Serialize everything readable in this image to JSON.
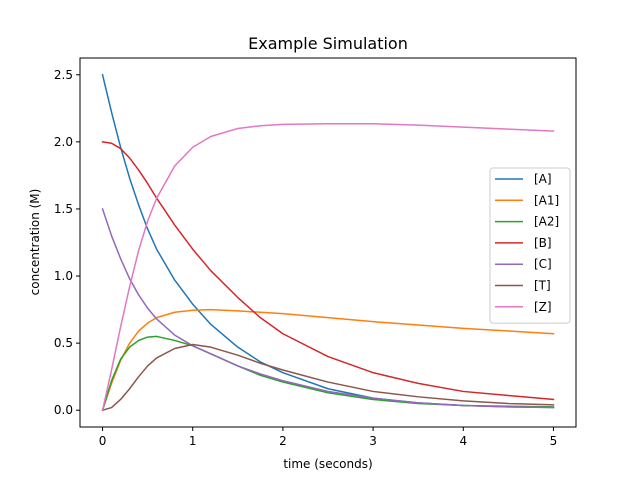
{
  "chart_data": {
    "type": "line",
    "title": "Example Simulation",
    "xlabel": "time (seconds)",
    "ylabel": "concentration (M)",
    "xlim": [
      -0.25,
      5.25
    ],
    "ylim": [
      -0.125,
      2.625
    ],
    "xticks": [
      0,
      1,
      2,
      3,
      4,
      5
    ],
    "xtick_labels": [
      "0",
      "1",
      "2",
      "3",
      "4",
      "5"
    ],
    "yticks": [
      0.0,
      0.5,
      1.0,
      1.5,
      2.0,
      2.5
    ],
    "ytick_labels": [
      "0.0",
      "0.5",
      "1.0",
      "1.5",
      "2.0",
      "2.5"
    ],
    "grid": false,
    "legend_position": "right",
    "x": [
      0,
      0.1,
      0.2,
      0.3,
      0.4,
      0.5,
      0.6,
      0.8,
      1.0,
      1.2,
      1.5,
      1.75,
      2.0,
      2.5,
      3.0,
      3.5,
      4.0,
      4.5,
      5.0
    ],
    "series": [
      {
        "name": "[A]",
        "color": "#1f77b4",
        "values": [
          2.5,
          2.22,
          1.96,
          1.73,
          1.53,
          1.35,
          1.2,
          0.97,
          0.79,
          0.64,
          0.47,
          0.36,
          0.28,
          0.16,
          0.09,
          0.055,
          0.035,
          0.025,
          0.02
        ]
      },
      {
        "name": "[A1]",
        "color": "#ff7f0e",
        "values": [
          0,
          0.2,
          0.37,
          0.5,
          0.59,
          0.65,
          0.69,
          0.73,
          0.745,
          0.75,
          0.74,
          0.73,
          0.72,
          0.69,
          0.66,
          0.635,
          0.61,
          0.59,
          0.57
        ]
      },
      {
        "name": "[A2]",
        "color": "#2ca02c",
        "values": [
          0,
          0.22,
          0.38,
          0.47,
          0.52,
          0.545,
          0.55,
          0.52,
          0.48,
          0.42,
          0.33,
          0.26,
          0.21,
          0.13,
          0.08,
          0.05,
          0.035,
          0.03,
          0.025
        ]
      },
      {
        "name": "[B]",
        "color": "#d62728",
        "values": [
          2.0,
          1.99,
          1.95,
          1.88,
          1.79,
          1.69,
          1.58,
          1.38,
          1.2,
          1.04,
          0.84,
          0.69,
          0.57,
          0.4,
          0.28,
          0.2,
          0.14,
          0.11,
          0.08
        ]
      },
      {
        "name": "[C]",
        "color": "#9467bd",
        "values": [
          1.5,
          1.3,
          1.13,
          0.98,
          0.86,
          0.76,
          0.68,
          0.56,
          0.48,
          0.42,
          0.33,
          0.27,
          0.22,
          0.14,
          0.09,
          0.055,
          0.035,
          0.025,
          0.02
        ]
      },
      {
        "name": "[T]",
        "color": "#8c564b",
        "values": [
          0,
          0.02,
          0.08,
          0.16,
          0.25,
          0.33,
          0.39,
          0.46,
          0.49,
          0.47,
          0.41,
          0.35,
          0.3,
          0.21,
          0.14,
          0.1,
          0.07,
          0.05,
          0.04
        ]
      },
      {
        "name": "[Z]",
        "color": "#e377c2",
        "values": [
          0,
          0.3,
          0.62,
          0.92,
          1.19,
          1.41,
          1.58,
          1.82,
          1.96,
          2.04,
          2.1,
          2.12,
          2.13,
          2.135,
          2.135,
          2.125,
          2.11,
          2.095,
          2.08
        ]
      }
    ]
  }
}
